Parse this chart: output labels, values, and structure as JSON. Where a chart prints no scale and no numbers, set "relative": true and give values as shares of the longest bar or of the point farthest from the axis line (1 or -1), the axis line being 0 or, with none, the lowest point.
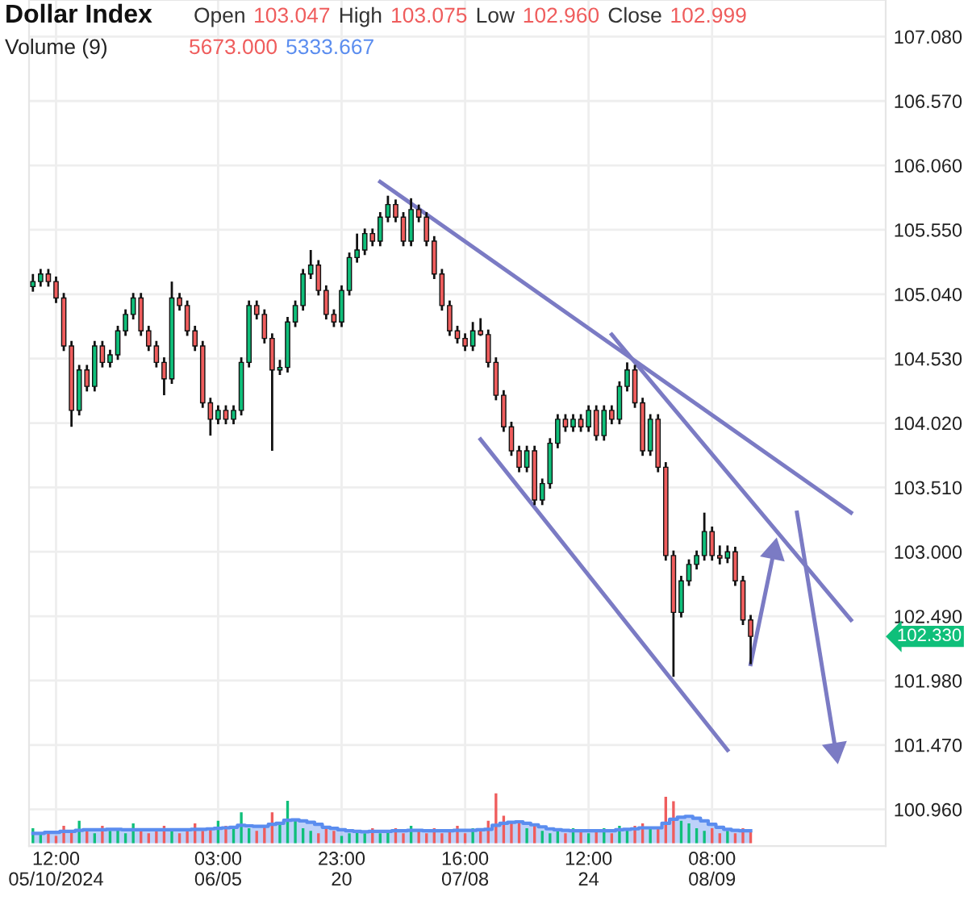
{
  "chart_data": [
    {
      "type": "candlestick",
      "title": "Dollar Index",
      "tick_labels": "y",
      "annotations": [
        "Open",
        "103.047",
        "High",
        "103.075",
        "Low",
        "102.960",
        "Close",
        "102.999",
        "102.330"
      ],
      "categories": [
        null,
        null,
        null,
        null,
        null,
        null,
        null,
        null,
        null,
        null,
        null,
        null,
        null,
        null,
        null,
        null,
        null,
        null,
        null,
        null,
        null,
        null,
        null,
        null,
        null,
        null,
        null,
        null,
        null,
        null,
        null,
        null,
        null,
        null,
        null,
        null,
        null,
        null,
        null,
        null,
        null,
        null,
        null,
        null,
        null,
        null,
        null,
        null,
        null,
        null,
        null,
        null,
        null,
        null,
        null,
        null,
        null,
        null,
        null,
        null,
        null,
        null,
        null,
        null,
        null,
        null,
        null,
        null,
        null,
        null,
        null,
        null,
        null,
        null,
        null,
        null,
        null,
        null,
        null,
        null,
        null,
        null,
        null,
        null,
        null,
        null,
        null,
        null,
        null,
        null,
        null,
        null,
        null,
        null,
        null,
        null,
        null,
        null,
        null,
        null,
        null,
        null,
        null,
        null,
        null,
        null,
        null,
        null,
        null,
        null,
        null
      ],
      "ohlc": [
        [
          105.1,
          105.2,
          105.06,
          105.14
        ],
        [
          105.14,
          105.24,
          105.1,
          105.2
        ],
        [
          105.2,
          105.24,
          105.1,
          105.14
        ],
        [
          105.14,
          105.18,
          104.97,
          105.01
        ],
        [
          105.01,
          105.05,
          104.59,
          104.63
        ],
        [
          104.63,
          104.67,
          103.99,
          104.12
        ],
        [
          104.12,
          104.48,
          104.08,
          104.44
        ],
        [
          104.44,
          104.48,
          104.27,
          104.31
        ],
        [
          104.31,
          104.67,
          104.27,
          104.63
        ],
        [
          104.63,
          104.67,
          104.46,
          104.5
        ],
        [
          104.5,
          104.6,
          104.46,
          104.56
        ],
        [
          104.56,
          104.79,
          104.52,
          104.75
        ],
        [
          104.75,
          104.92,
          104.71,
          104.88
        ],
        [
          104.88,
          105.05,
          104.84,
          105.01
        ],
        [
          105.01,
          105.05,
          104.71,
          104.75
        ],
        [
          104.75,
          104.79,
          104.59,
          104.63
        ],
        [
          104.63,
          104.67,
          104.46,
          104.5
        ],
        [
          104.5,
          104.54,
          104.24,
          104.37
        ],
        [
          104.37,
          105.14,
          104.33,
          105.01
        ],
        [
          105.01,
          105.05,
          104.91,
          104.95
        ],
        [
          104.95,
          104.99,
          104.71,
          104.75
        ],
        [
          104.75,
          104.79,
          104.59,
          104.63
        ],
        [
          104.63,
          104.67,
          104.14,
          104.18
        ],
        [
          104.18,
          104.22,
          103.92,
          104.05
        ],
        [
          104.05,
          104.16,
          104.01,
          104.12
        ],
        [
          104.12,
          104.16,
          104.01,
          104.05
        ],
        [
          104.05,
          104.16,
          104.01,
          104.12
        ],
        [
          104.12,
          104.54,
          104.08,
          104.5
        ],
        [
          104.5,
          104.99,
          104.46,
          104.95
        ],
        [
          104.95,
          104.99,
          104.84,
          104.88
        ],
        [
          104.88,
          104.92,
          104.65,
          104.69
        ],
        [
          104.69,
          104.73,
          103.8,
          104.44
        ],
        [
          104.44,
          104.52,
          104.4,
          104.46
        ],
        [
          104.46,
          104.86,
          104.42,
          104.82
        ],
        [
          104.82,
          104.99,
          104.78,
          104.95
        ],
        [
          104.95,
          105.24,
          104.91,
          105.2
        ],
        [
          105.2,
          105.39,
          105.16,
          105.27
        ],
        [
          105.27,
          105.31,
          105.03,
          105.07
        ],
        [
          105.07,
          105.11,
          104.84,
          104.88
        ],
        [
          104.88,
          104.92,
          104.78,
          104.82
        ],
        [
          104.82,
          105.11,
          104.78,
          105.07
        ],
        [
          105.07,
          105.37,
          105.03,
          105.33
        ],
        [
          105.33,
          105.52,
          105.29,
          105.39
        ],
        [
          105.39,
          105.56,
          105.35,
          105.52
        ],
        [
          105.52,
          105.56,
          105.42,
          105.46
        ],
        [
          105.46,
          105.69,
          105.42,
          105.65
        ],
        [
          105.65,
          105.82,
          105.61,
          105.75
        ],
        [
          105.75,
          105.79,
          105.61,
          105.65
        ],
        [
          105.65,
          105.69,
          105.42,
          105.46
        ],
        [
          105.46,
          105.8,
          105.42,
          105.71
        ],
        [
          105.71,
          105.75,
          105.61,
          105.65
        ],
        [
          105.65,
          105.69,
          105.42,
          105.46
        ],
        [
          105.46,
          105.5,
          105.16,
          105.2
        ],
        [
          105.2,
          105.24,
          104.91,
          104.95
        ],
        [
          104.95,
          104.99,
          104.71,
          104.75
        ],
        [
          104.75,
          104.79,
          104.65,
          104.69
        ],
        [
          104.69,
          104.73,
          104.59,
          104.63
        ],
        [
          104.63,
          104.82,
          104.59,
          104.75
        ],
        [
          104.75,
          104.85,
          104.71,
          104.72
        ],
        [
          104.72,
          104.76,
          104.46,
          104.5
        ],
        [
          104.5,
          104.54,
          104.2,
          104.24
        ],
        [
          104.24,
          104.28,
          103.95,
          103.99
        ],
        [
          103.99,
          104.03,
          103.76,
          103.8
        ],
        [
          103.8,
          103.84,
          103.63,
          103.67
        ],
        [
          103.67,
          103.84,
          103.63,
          103.8
        ],
        [
          103.8,
          103.84,
          103.37,
          103.41
        ],
        [
          103.41,
          103.58,
          103.37,
          103.54
        ],
        [
          103.54,
          103.9,
          103.5,
          103.86
        ],
        [
          103.86,
          104.09,
          103.82,
          104.05
        ],
        [
          104.05,
          104.09,
          103.95,
          103.99
        ],
        [
          103.99,
          104.09,
          103.95,
          104.05
        ],
        [
          104.05,
          104.09,
          103.95,
          103.99
        ],
        [
          103.99,
          104.16,
          103.95,
          104.12
        ],
        [
          104.12,
          104.16,
          103.88,
          103.92
        ],
        [
          103.92,
          104.16,
          103.88,
          104.12
        ],
        [
          104.12,
          104.16,
          104.01,
          104.05
        ],
        [
          104.05,
          104.35,
          104.01,
          104.31
        ],
        [
          104.31,
          104.5,
          104.27,
          104.44
        ],
        [
          104.44,
          104.48,
          104.14,
          104.18
        ],
        [
          104.18,
          104.22,
          103.76,
          103.8
        ],
        [
          103.8,
          104.09,
          103.76,
          104.05
        ],
        [
          104.05,
          104.09,
          103.63,
          103.67
        ],
        [
          103.67,
          103.71,
          102.93,
          102.97
        ],
        [
          102.97,
          103.01,
          102.01,
          102.52
        ],
        [
          102.52,
          102.81,
          102.48,
          102.77
        ],
        [
          102.77,
          102.94,
          102.73,
          102.9
        ],
        [
          102.9,
          103.01,
          102.86,
          102.97
        ],
        [
          102.97,
          103.31,
          102.93,
          103.16
        ],
        [
          103.16,
          103.2,
          102.93,
          102.97
        ],
        [
          102.97,
          103.05,
          102.9,
          102.95
        ],
        [
          102.95,
          103.05,
          102.91,
          103.0
        ],
        [
          103.0,
          103.04,
          102.73,
          102.77
        ],
        [
          102.77,
          102.81,
          102.42,
          102.46
        ],
        [
          102.46,
          102.5,
          102.11,
          102.33
        ],
        null,
        null,
        null,
        null,
        null,
        null,
        null,
        null,
        null,
        null,
        null,
        null,
        null,
        null,
        null,
        null,
        null
      ],
      "colors": [
        "#0fbf7a",
        "#0fbf7a",
        "#ef5d5d",
        "#ef5d5d",
        "#ef5d5d",
        "#ef5d5d",
        "#0fbf7a",
        "#ef5d5d",
        "#0fbf7a",
        "#ef5d5d",
        "#0fbf7a",
        "#0fbf7a",
        "#0fbf7a",
        "#0fbf7a",
        "#ef5d5d",
        "#ef5d5d",
        "#ef5d5d",
        "#ef5d5d",
        "#0fbf7a",
        "#ef5d5d",
        "#ef5d5d",
        "#ef5d5d",
        "#ef5d5d",
        "#ef5d5d",
        "#0fbf7a",
        "#ef5d5d",
        "#0fbf7a",
        "#0fbf7a",
        "#0fbf7a",
        "#ef5d5d",
        "#ef5d5d",
        "#ef5d5d",
        "#0fbf7a",
        "#0fbf7a",
        "#0fbf7a",
        "#0fbf7a",
        "#0fbf7a",
        "#ef5d5d",
        "#ef5d5d",
        "#ef5d5d",
        "#0fbf7a",
        "#0fbf7a",
        "#0fbf7a",
        "#0fbf7a",
        "#ef5d5d",
        "#0fbf7a",
        "#0fbf7a",
        "#ef5d5d",
        "#ef5d5d",
        "#0fbf7a",
        "#ef5d5d",
        "#ef5d5d",
        "#ef5d5d",
        "#ef5d5d",
        "#ef5d5d",
        "#ef5d5d",
        "#ef5d5d",
        "#0fbf7a",
        "#ef5d5d",
        "#ef5d5d",
        "#ef5d5d",
        "#ef5d5d",
        "#ef5d5d",
        "#ef5d5d",
        "#0fbf7a",
        "#ef5d5d",
        "#0fbf7a",
        "#0fbf7a",
        "#0fbf7a",
        "#ef5d5d",
        "#0fbf7a",
        "#ef5d5d",
        "#0fbf7a",
        "#ef5d5d",
        "#0fbf7a",
        "#ef5d5d",
        "#0fbf7a",
        "#0fbf7a",
        "#ef5d5d",
        "#ef5d5d",
        "#0fbf7a",
        "#ef5d5d",
        "#ef5d5d",
        "#ef5d5d",
        "#0fbf7a",
        "#0fbf7a",
        "#0fbf7a",
        "#0fbf7a",
        "#ef5d5d",
        "#ef5d5d",
        "#0fbf7a",
        "#ef5d5d",
        "#ef5d5d",
        "#ef5d5d",
        null,
        null,
        null,
        null,
        null,
        null,
        null,
        null,
        null,
        null,
        null,
        null,
        null,
        null,
        null,
        null,
        null
      ],
      "series": [
        {
          "type": "line",
          "color": "#7b7bc4",
          "values": [
            null,
            null,
            null,
            null,
            null,
            null,
            null,
            null,
            null,
            null,
            null,
            null,
            null,
            null,
            null,
            null,
            null,
            null,
            null,
            null,
            null,
            null,
            null,
            null,
            null,
            null,
            null,
            null,
            null,
            null,
            null,
            null,
            null,
            null,
            null,
            null,
            null,
            null,
            null,
            null,
            null,
            null,
            null,
            null,
            null,
            105.93,
            null,
            null,
            null,
            null,
            null,
            null,
            null,
            null,
            null,
            null,
            null,
            null,
            null,
            null,
            null,
            null,
            null,
            null,
            null,
            null,
            null,
            null,
            null,
            null,
            null,
            null,
            null,
            null,
            null,
            null,
            null,
            null,
            null,
            null,
            null,
            null,
            null,
            null,
            null,
            null,
            null,
            null,
            null,
            null,
            null,
            null,
            null,
            null,
            null,
            null,
            null,
            null,
            null,
            null,
            null,
            null,
            null,
            null,
            null,
            null,
            103.31,
            null,
            null,
            null,
            null
          ]
        },
        {
          "type": "line",
          "color": "#7b7bc4",
          "values": [
            null,
            null,
            null,
            null,
            null,
            null,
            null,
            null,
            null,
            null,
            null,
            null,
            null,
            null,
            null,
            null,
            null,
            null,
            null,
            null,
            null,
            null,
            null,
            null,
            null,
            null,
            null,
            null,
            null,
            null,
            null,
            null,
            null,
            null,
            null,
            null,
            null,
            null,
            null,
            null,
            null,
            null,
            null,
            null,
            null,
            null,
            null,
            null,
            null,
            null,
            null,
            null,
            null,
            null,
            null,
            null,
            null,
            null,
            null,
            null,
            null,
            null,
            null,
            null,
            null,
            null,
            null,
            null,
            null,
            null,
            null,
            null,
            null,
            null,
            null,
            104.72,
            null,
            null,
            null,
            null,
            null,
            null,
            null,
            null,
            null,
            null,
            null,
            null,
            null,
            null,
            null,
            null,
            null,
            null,
            null,
            null,
            null,
            null,
            null,
            null,
            null,
            null,
            null,
            null,
            null,
            null,
            102.46,
            null,
            null,
            null,
            null
          ]
        },
        {
          "type": "line",
          "color": "#7b7bc4",
          "values": [
            null,
            null,
            null,
            null,
            null,
            null,
            null,
            null,
            null,
            null,
            null,
            null,
            null,
            null,
            null,
            null,
            null,
            null,
            null,
            null,
            null,
            null,
            null,
            null,
            null,
            null,
            null,
            null,
            null,
            null,
            null,
            null,
            null,
            null,
            null,
            null,
            null,
            null,
            null,
            null,
            null,
            null,
            null,
            null,
            null,
            null,
            null,
            null,
            null,
            null,
            null,
            null,
            null,
            null,
            null,
            null,
            null,
            null,
            103.89,
            null,
            null,
            null,
            null,
            null,
            null,
            null,
            null,
            null,
            null,
            null,
            null,
            null,
            null,
            null,
            null,
            null,
            null,
            null,
            null,
            null,
            null,
            null,
            null,
            null,
            null,
            null,
            null,
            null,
            null,
            null,
            101.43,
            null,
            null,
            null,
            null,
            null,
            null,
            null,
            null,
            null,
            null,
            null,
            null,
            null,
            null,
            null,
            null,
            null,
            null,
            null,
            null
          ]
        },
        {
          "type": "line",
          "marker": "triangle",
          "color": "#7b7bc4",
          "values": [
            null,
            null,
            null,
            null,
            null,
            null,
            null,
            null,
            null,
            null,
            null,
            null,
            null,
            null,
            null,
            null,
            null,
            null,
            null,
            null,
            null,
            null,
            null,
            null,
            null,
            null,
            null,
            null,
            null,
            null,
            null,
            null,
            null,
            null,
            null,
            null,
            null,
            null,
            null,
            null,
            null,
            null,
            null,
            null,
            null,
            null,
            null,
            null,
            null,
            null,
            null,
            null,
            null,
            null,
            null,
            null,
            null,
            null,
            null,
            null,
            null,
            null,
            null,
            null,
            null,
            null,
            null,
            null,
            null,
            null,
            null,
            null,
            null,
            null,
            null,
            null,
            null,
            null,
            null,
            null,
            null,
            null,
            null,
            null,
            null,
            null,
            null,
            null,
            null,
            null,
            null,
            null,
            null,
            102.11,
            null,
            null,
            103.0,
            null,
            null,
            null,
            null,
            null,
            null,
            null,
            null,
            null,
            null,
            null,
            null,
            null,
            null
          ]
        },
        {
          "type": "line",
          "marker": "triangle",
          "color": "#7b7bc4",
          "values": [
            null,
            null,
            null,
            null,
            null,
            null,
            null,
            null,
            null,
            null,
            null,
            null,
            null,
            null,
            null,
            null,
            null,
            null,
            null,
            null,
            null,
            null,
            null,
            null,
            null,
            null,
            null,
            null,
            null,
            null,
            null,
            null,
            null,
            null,
            null,
            null,
            null,
            null,
            null,
            null,
            null,
            null,
            null,
            null,
            null,
            null,
            null,
            null,
            null,
            null,
            null,
            null,
            null,
            null,
            null,
            null,
            null,
            null,
            null,
            null,
            null,
            null,
            null,
            null,
            null,
            null,
            null,
            null,
            null,
            null,
            null,
            null,
            null,
            null,
            null,
            null,
            null,
            null,
            null,
            null,
            null,
            null,
            null,
            null,
            null,
            null,
            null,
            null,
            null,
            null,
            null,
            null,
            null,
            null,
            null,
            null,
            null,
            null,
            null,
            103.31,
            null,
            null,
            null,
            null,
            101.43,
            null,
            null,
            null,
            null,
            null,
            null
          ]
        }
      ],
      "ylim": [
        100.67,
        107.37
      ],
      "yticks": [
        {
          "value": 100.96,
          "label": "100.960"
        },
        {
          "value": 101.47,
          "label": "101.470"
        },
        {
          "value": 101.98,
          "label": "101.980"
        },
        {
          "value": 102.49,
          "label": "102.490"
        },
        {
          "value": 103.0,
          "label": "103.000"
        },
        {
          "value": 103.51,
          "label": "103.510"
        },
        {
          "value": 104.02,
          "label": "104.020"
        },
        {
          "value": 104.53,
          "label": "104.530"
        },
        {
          "value": 105.04,
          "label": "105.040"
        },
        {
          "value": 105.55,
          "label": "105.550"
        },
        {
          "value": 106.06,
          "label": "106.060"
        },
        {
          "value": 106.57,
          "label": "106.570"
        },
        {
          "value": 107.08,
          "label": "107.080"
        }
      ],
      "grid": true
    },
    {
      "type": "bar",
      "relative": true,
      "title": "Volume (9)",
      "annotations": [
        "5673.000",
        "5333.667"
      ],
      "tick_labels": "x",
      "categories": [
        null,
        null,
        null,
        "12:00\n05/10/2024",
        null,
        null,
        null,
        null,
        null,
        null,
        null,
        null,
        null,
        null,
        null,
        null,
        null,
        null,
        null,
        null,
        null,
        null,
        null,
        null,
        "03:00\n06/05",
        null,
        null,
        null,
        null,
        null,
        null,
        null,
        null,
        null,
        null,
        null,
        null,
        null,
        null,
        null,
        "23:00\n20",
        null,
        null,
        null,
        null,
        null,
        null,
        null,
        null,
        null,
        null,
        null,
        null,
        null,
        null,
        null,
        "16:00\n07/08",
        null,
        null,
        null,
        null,
        null,
        null,
        null,
        null,
        null,
        null,
        null,
        null,
        null,
        null,
        null,
        "12:00\n24",
        null,
        null,
        null,
        null,
        null,
        null,
        null,
        null,
        null,
        null,
        null,
        null,
        null,
        null,
        null,
        "08:00\n08/09",
        null,
        null,
        null,
        null,
        null
      ],
      "series": [
        {
          "type": "bar",
          "values": [
            0.3,
            0.2,
            0.25,
            0.15,
            0.35,
            0.25,
            0.45,
            0.3,
            0.2,
            0.35,
            0.25,
            0.3,
            0.2,
            0.4,
            0.25,
            0.2,
            0.3,
            0.35,
            0.25,
            0.2,
            0.3,
            0.4,
            0.25,
            0.3,
            0.45,
            0.35,
            0.3,
            0.62,
            0.3,
            0.25,
            0.35,
            0.62,
            0.4,
            0.85,
            0.45,
            0.3,
            0.25,
            0.2,
            0.3,
            0.25,
            0.15,
            0.2,
            0.25,
            0.2,
            0.3,
            0.2,
            0.25,
            0.3,
            0.2,
            0.35,
            0.25,
            0.2,
            0.3,
            0.2,
            0.25,
            0.35,
            0.2,
            0.3,
            0.3,
            0.45,
            1.0,
            0.55,
            0.4,
            0.45,
            0.3,
            0.35,
            0.25,
            0.2,
            0.25,
            0.2,
            0.3,
            0.25,
            0.2,
            0.25,
            0.3,
            0.2,
            0.35,
            0.3,
            0.35,
            0.4,
            0.3,
            0.3,
            0.93,
            0.84,
            0.45,
            0.4,
            0.3,
            0.25,
            0.3,
            0.2,
            0.25,
            0.2,
            0.3,
            0.25
          ],
          "colors": [
            "#0fbf7a",
            "#0fbf7a",
            "#ef5d5d",
            "#ef5d5d",
            "#ef5d5d",
            "#ef5d5d",
            "#0fbf7a",
            "#ef5d5d",
            "#0fbf7a",
            "#ef5d5d",
            "#0fbf7a",
            "#0fbf7a",
            "#0fbf7a",
            "#0fbf7a",
            "#ef5d5d",
            "#ef5d5d",
            "#ef5d5d",
            "#ef5d5d",
            "#0fbf7a",
            "#ef5d5d",
            "#ef5d5d",
            "#ef5d5d",
            "#ef5d5d",
            "#ef5d5d",
            "#0fbf7a",
            "#ef5d5d",
            "#0fbf7a",
            "#0fbf7a",
            "#0fbf7a",
            "#ef5d5d",
            "#ef5d5d",
            "#ef5d5d",
            "#0fbf7a",
            "#0fbf7a",
            "#0fbf7a",
            "#0fbf7a",
            "#0fbf7a",
            "#ef5d5d",
            "#ef5d5d",
            "#ef5d5d",
            "#0fbf7a",
            "#0fbf7a",
            "#0fbf7a",
            "#0fbf7a",
            "#ef5d5d",
            "#0fbf7a",
            "#0fbf7a",
            "#ef5d5d",
            "#ef5d5d",
            "#0fbf7a",
            "#ef5d5d",
            "#ef5d5d",
            "#ef5d5d",
            "#ef5d5d",
            "#ef5d5d",
            "#ef5d5d",
            "#ef5d5d",
            "#0fbf7a",
            "#ef5d5d",
            "#ef5d5d",
            "#ef5d5d",
            "#ef5d5d",
            "#ef5d5d",
            "#ef5d5d",
            "#0fbf7a",
            "#ef5d5d",
            "#0fbf7a",
            "#0fbf7a",
            "#0fbf7a",
            "#ef5d5d",
            "#0fbf7a",
            "#ef5d5d",
            "#0fbf7a",
            "#ef5d5d",
            "#0fbf7a",
            "#ef5d5d",
            "#0fbf7a",
            "#0fbf7a",
            "#ef5d5d",
            "#ef5d5d",
            "#0fbf7a",
            "#ef5d5d",
            "#ef5d5d",
            "#ef5d5d",
            "#0fbf7a",
            "#0fbf7a",
            "#0fbf7a",
            "#0fbf7a",
            "#ef5d5d",
            "#ef5d5d",
            "#0fbf7a",
            "#ef5d5d",
            "#ef5d5d",
            "#ef5d5d"
          ]
        },
        {
          "type": "area",
          "color": "#5b8def",
          "values": [
            0.2,
            0.2,
            0.22,
            0.22,
            0.24,
            0.24,
            0.26,
            0.27,
            0.27,
            0.27,
            0.28,
            0.28,
            0.27,
            0.27,
            0.27,
            0.27,
            0.27,
            0.27,
            0.27,
            0.27,
            0.27,
            0.28,
            0.28,
            0.29,
            0.3,
            0.31,
            0.32,
            0.36,
            0.35,
            0.34,
            0.34,
            0.38,
            0.4,
            0.46,
            0.47,
            0.45,
            0.42,
            0.38,
            0.32,
            0.3,
            0.27,
            0.25,
            0.24,
            0.23,
            0.24,
            0.24,
            0.24,
            0.25,
            0.25,
            0.26,
            0.26,
            0.25,
            0.25,
            0.25,
            0.25,
            0.26,
            0.26,
            0.26,
            0.27,
            0.28,
            0.36,
            0.4,
            0.42,
            0.43,
            0.4,
            0.37,
            0.33,
            0.29,
            0.27,
            0.26,
            0.25,
            0.25,
            0.25,
            0.25,
            0.25,
            0.25,
            0.27,
            0.28,
            0.29,
            0.31,
            0.31,
            0.31,
            0.4,
            0.48,
            0.52,
            0.54,
            0.5,
            0.45,
            0.38,
            0.32,
            0.28,
            0.26,
            0.25,
            0.25
          ]
        }
      ]
    }
  ]
}
